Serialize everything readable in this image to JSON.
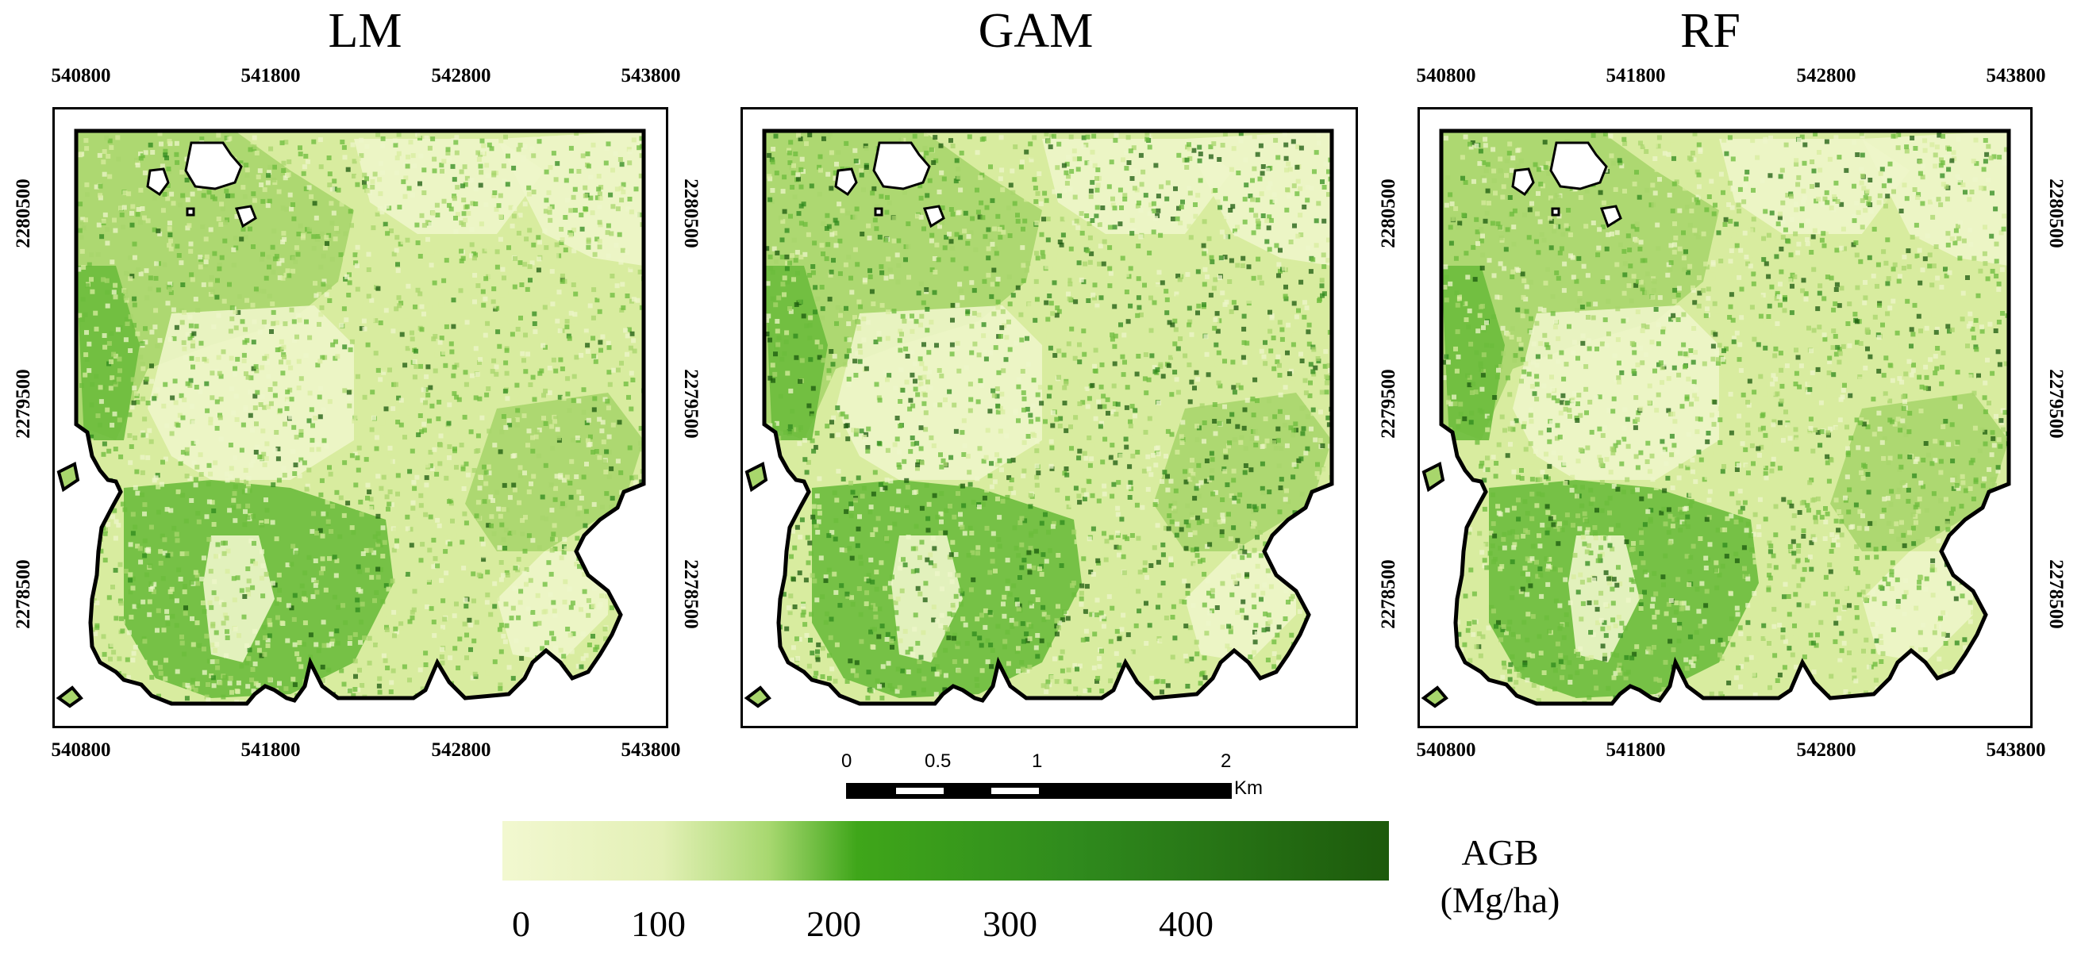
{
  "panels": [
    {
      "id": "lm",
      "title": "LM",
      "has_coords": true
    },
    {
      "id": "gam",
      "title": "GAM",
      "has_coords": false
    },
    {
      "id": "rf",
      "title": "RF",
      "has_coords": true
    }
  ],
  "coords": {
    "x_ticks": [
      "540800",
      "541800",
      "542800",
      "543800"
    ],
    "y_ticks": [
      "2280500",
      "2279500",
      "2278500"
    ]
  },
  "scalebar": {
    "labels": [
      "0",
      "0.5",
      "1",
      "2"
    ],
    "unit": "Km"
  },
  "legend": {
    "title_line1": "AGB",
    "title_line2": "(Mg/ha)",
    "ticks": [
      "0",
      "100",
      "200",
      "300",
      "400"
    ],
    "colors": [
      "#f2f8d0",
      "#e3f0b6",
      "#a8d870",
      "#3fa61a",
      "#2f8a1d",
      "#1d5a0c"
    ]
  },
  "map_colors": {
    "outline": "#000000",
    "very_light": "#eef6c9",
    "light": "#d8ec9f",
    "mid": "#a8d66c",
    "green": "#6cbc3c",
    "dark": "#2f8a1d",
    "darkest": "#1b5a0e"
  }
}
